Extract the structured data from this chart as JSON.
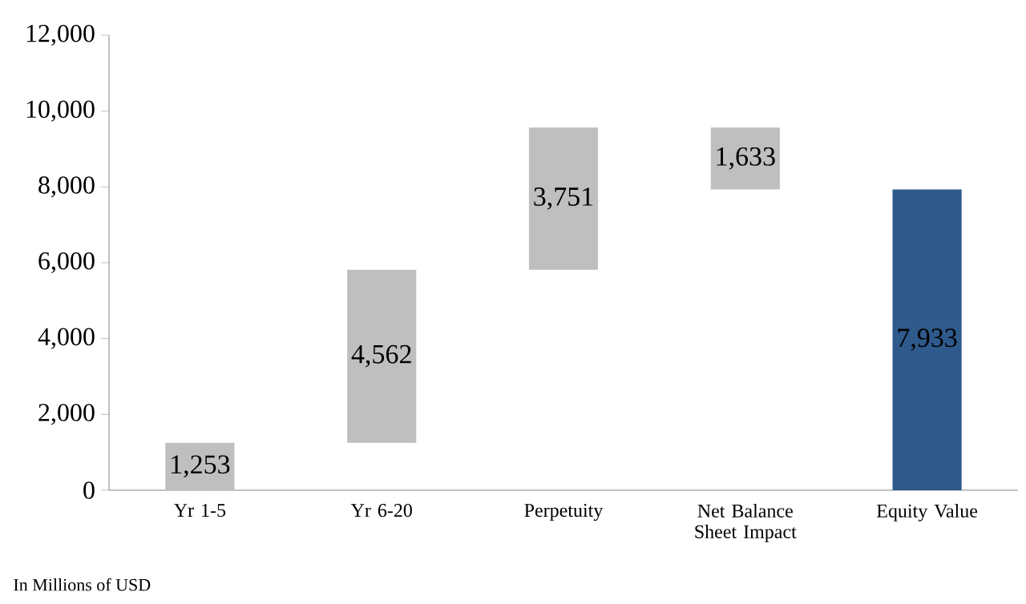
{
  "chart_data": {
    "type": "bar",
    "categories": [
      "Yr 1-5",
      "Yr 6-20",
      "Perpetuity",
      "Net Balance Sheet Impact",
      "Equity Value"
    ],
    "values": [
      1253,
      4562,
      3751,
      -1633,
      7933
    ],
    "base": [
      0,
      1253,
      5815,
      9566,
      0
    ],
    "colors": [
      "#bfbfbf",
      "#bfbfbf",
      "#bfbfbf",
      "#bfbfbf",
      "#2e5a8c"
    ],
    "value_labels": [
      "1,253",
      "4,562",
      "3,751",
      "1,633",
      "7,933"
    ],
    "ylim": [
      0,
      12000
    ],
    "yticks": [
      {
        "value": 0,
        "label": "0"
      },
      {
        "value": 2000,
        "label": "2,000"
      },
      {
        "value": 4000,
        "label": "4,000"
      },
      {
        "value": 6000,
        "label": "6,000"
      },
      {
        "value": 8000,
        "label": "8,000"
      },
      {
        "value": 10000,
        "label": "10,000"
      },
      {
        "value": 12000,
        "label": "12,000"
      }
    ],
    "grid": false,
    "annotations": [
      "In Millions of USD"
    ]
  }
}
